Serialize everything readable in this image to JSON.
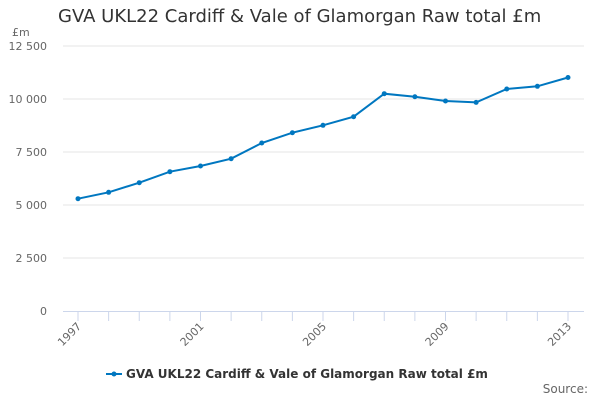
{
  "chart_data": {
    "type": "line",
    "title": "GVA UKL22 Cardiff & Vale of Glamorgan Raw total £m",
    "ylabel": "£m",
    "xlabel": "",
    "ylim": [
      0,
      12500
    ],
    "yticks": [
      0,
      2500,
      5000,
      7500,
      10000,
      12500
    ],
    "ytick_labels": [
      "0",
      "2 500",
      "5 000",
      "7 500",
      "10 000",
      "12 500"
    ],
    "xticks": [
      "1997",
      "2001",
      "2005",
      "2009",
      "2013"
    ],
    "x": [
      1997,
      1998,
      1999,
      2000,
      2001,
      2002,
      2003,
      2004,
      2005,
      2006,
      2007,
      2008,
      2009,
      2010,
      2011,
      2012,
      2013
    ],
    "series": [
      {
        "name": "GVA UKL22 Cardiff & Vale of Glamorgan Raw total £m",
        "color": "#0077c0",
        "values": [
          5297,
          5599,
          6052,
          6571,
          6840,
          7184,
          7925,
          8410,
          8759,
          9165,
          10250,
          10108,
          9906,
          9840,
          10472,
          10599,
          11014
        ]
      }
    ],
    "grid": true,
    "legend": "bottom",
    "source_label": "Source:"
  }
}
